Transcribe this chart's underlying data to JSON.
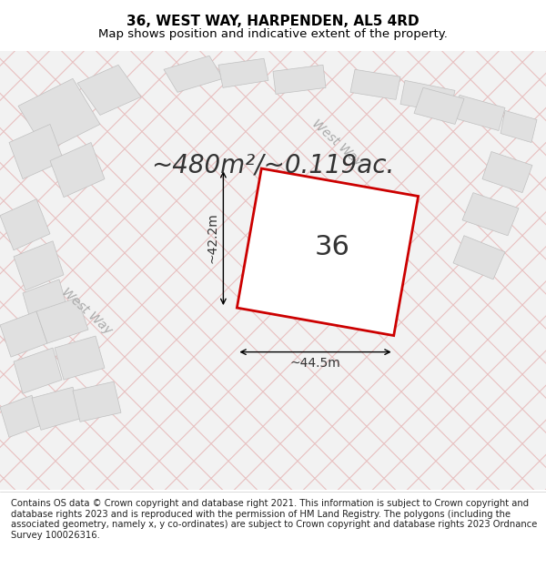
{
  "title": "36, WEST WAY, HARPENDEN, AL5 4RD",
  "subtitle": "Map shows position and indicative extent of the property.",
  "copyright": "Contains OS data © Crown copyright and database right 2021. This information is subject to Crown copyright and database rights 2023 and is reproduced with the permission of HM Land Registry. The polygons (including the associated geometry, namely x, y co-ordinates) are subject to Crown copyright and database rights 2023 Ordnance Survey 100026316.",
  "area_text": "~480m²/~0.119ac.",
  "dim_h": "~42.2m",
  "dim_w": "~44.5m",
  "property_label": "36",
  "map_bg": "#f5f5f5",
  "hatch_color": "#e8c0c0",
  "plot_color": "#cc0000",
  "building_fill": "#e8e8e8",
  "street_label": "West Way",
  "title_fontsize": 11,
  "subtitle_fontsize": 9.5,
  "area_fontsize": 20,
  "dim_fontsize": 10,
  "label_fontsize": 22,
  "street_fontsize": 10,
  "copyright_fontsize": 7.2
}
